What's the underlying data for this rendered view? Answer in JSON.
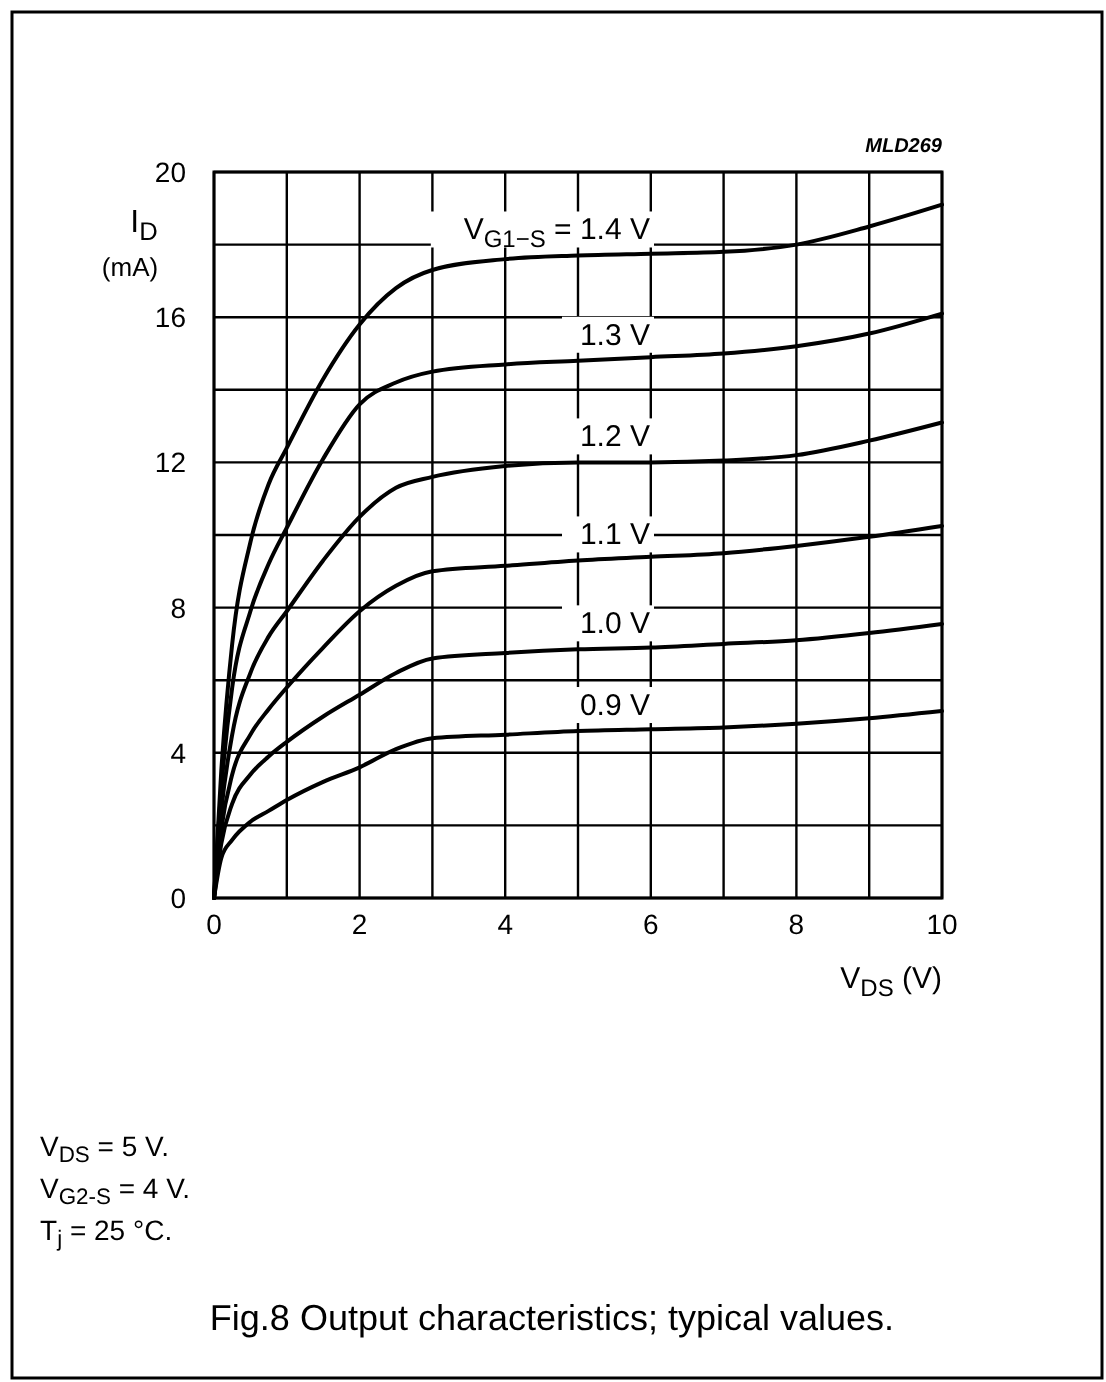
{
  "chart_data": {
    "type": "line",
    "title": "Fig.8  Output characteristics; typical values.",
    "xlabel": "V$_{DS}$ (V)",
    "ylabel": "I$_{D}$ (mA)",
    "annotations": [
      "MLD269",
      "V$_{DS}$ = 5 V.",
      "V$_{G2-S}$ = 4 V.",
      "T$_{j}$ = 25 °C."
    ],
    "x": [
      0,
      0.1,
      0.25,
      0.5,
      0.75,
      1,
      1.5,
      2,
      2.5,
      3,
      4,
      5,
      6,
      7,
      8,
      9,
      10
    ],
    "series": [
      {
        "name": "V$_{G1−S}$ = 1.4 V",
        "color": "#000000",
        "values": [
          0,
          3.5,
          7,
          9.8,
          11.4,
          12.4,
          14.3,
          15.8,
          16.8,
          17.3,
          17.6,
          17.7,
          17.75,
          17.8,
          18.0,
          18.5,
          19.1
        ]
      },
      {
        "name": "1.3 V",
        "color": "#000000",
        "values": [
          0,
          3.0,
          5.8,
          7.9,
          9.2,
          10.2,
          12.1,
          13.6,
          14.2,
          14.5,
          14.7,
          14.8,
          14.9,
          15.0,
          15.2,
          15.55,
          16.1
        ]
      },
      {
        "name": "1.2 V",
        "color": "#000000",
        "values": [
          0,
          2.4,
          4.5,
          6.2,
          7.2,
          7.9,
          9.3,
          10.5,
          11.3,
          11.6,
          11.9,
          12.0,
          12.0,
          12.05,
          12.2,
          12.6,
          13.1
        ]
      },
      {
        "name": "1.1 V",
        "color": "#000000",
        "values": [
          0,
          1.9,
          3.4,
          4.5,
          5.2,
          5.8,
          6.9,
          7.9,
          8.6,
          9.0,
          9.15,
          9.3,
          9.4,
          9.5,
          9.7,
          9.95,
          10.25
        ]
      },
      {
        "name": "1.0 V",
        "color": "#000000",
        "values": [
          0,
          1.5,
          2.6,
          3.4,
          3.9,
          4.3,
          5.0,
          5.6,
          6.2,
          6.6,
          6.75,
          6.85,
          6.9,
          7.0,
          7.1,
          7.3,
          7.55
        ]
      },
      {
        "name": "0.9 V",
        "color": "#000000",
        "values": [
          0,
          1.1,
          1.6,
          2.1,
          2.4,
          2.7,
          3.2,
          3.6,
          4.1,
          4.4,
          4.5,
          4.6,
          4.65,
          4.7,
          4.8,
          4.95,
          5.15
        ]
      }
    ],
    "xlim": [
      0,
      10
    ],
    "xticks": [
      0,
      2,
      4,
      6,
      8,
      10
    ],
    "ylim": [
      0,
      20
    ],
    "yticks": [
      0,
      4,
      8,
      12,
      16,
      20
    ],
    "grid": true,
    "legend": false,
    "marker": "none",
    "line_style": "solid"
  }
}
